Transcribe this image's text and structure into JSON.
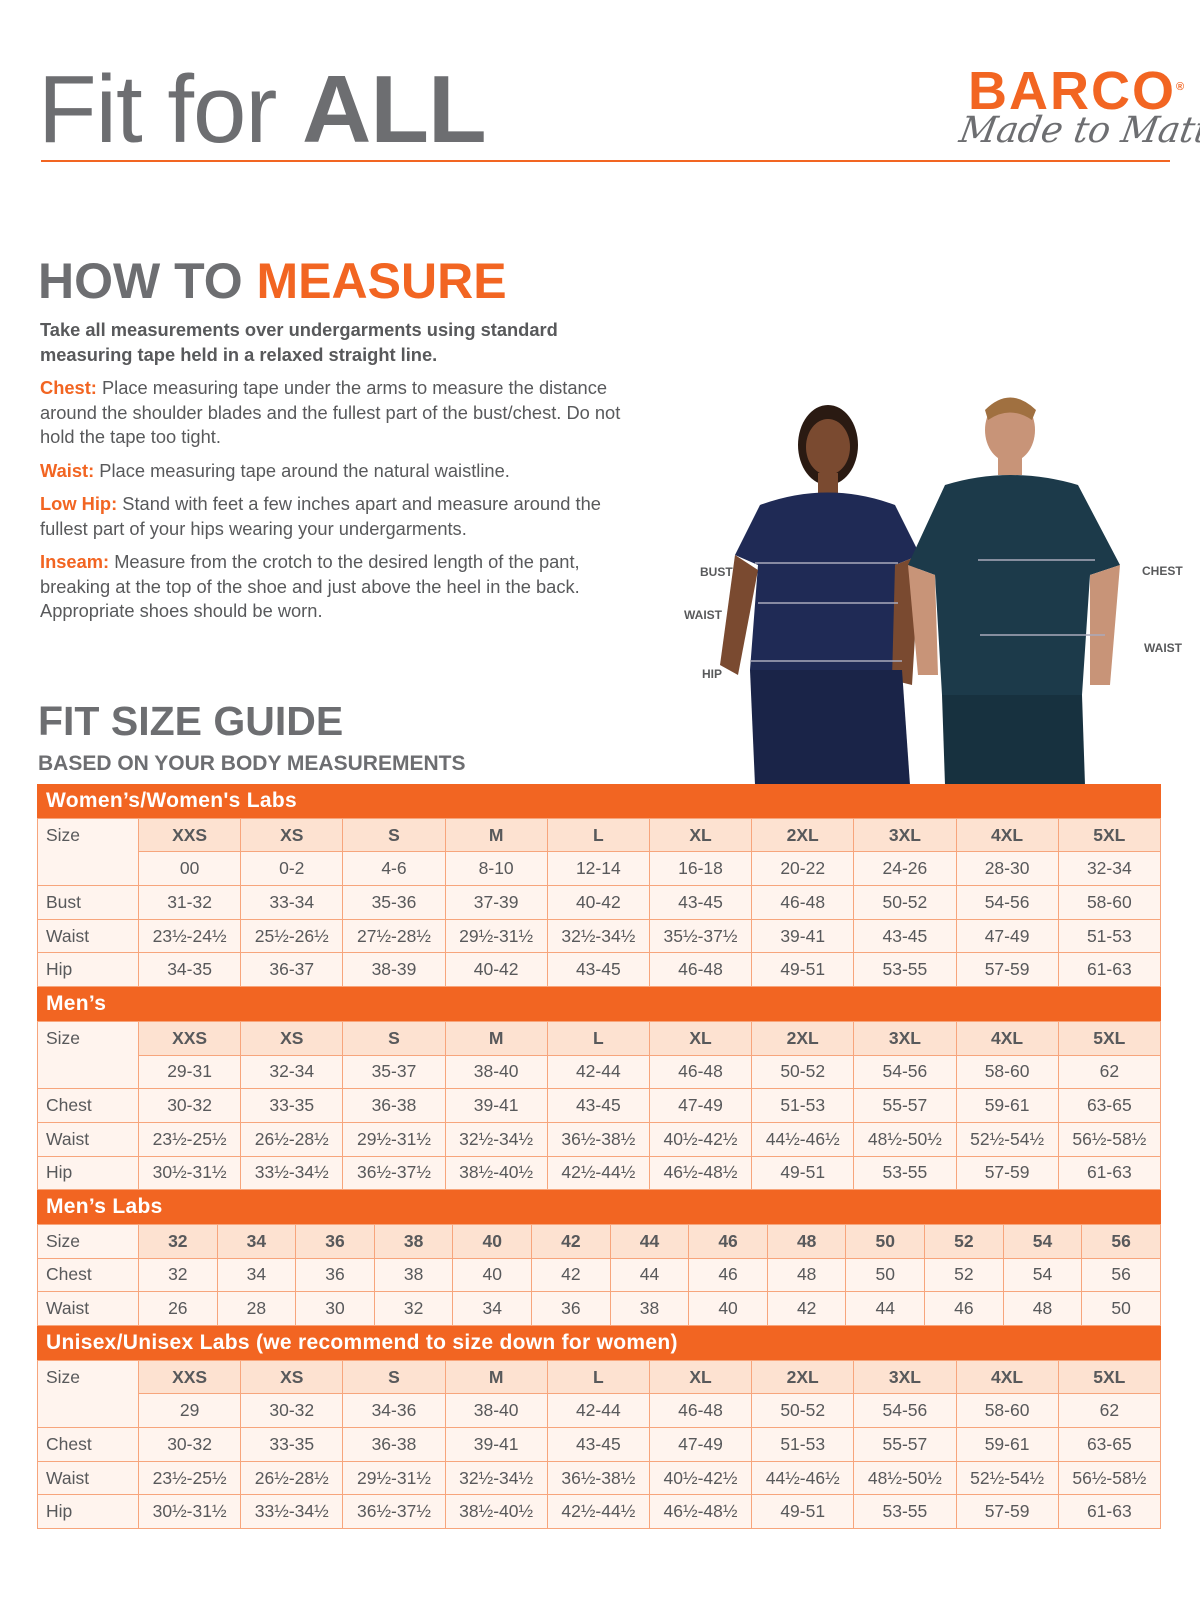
{
  "header": {
    "title_light": "Fit for ",
    "title_bold": "ALL",
    "brand": "BARCO",
    "brand_mark": "®",
    "tagline": "Made to Matter"
  },
  "measure": {
    "title_a": "HOW TO ",
    "title_b": "MEASURE",
    "intro": "Take all measurements over undergarments using standard measuring tape held in a relaxed straight line.",
    "items": [
      {
        "key": "Chest:",
        "text": "Place measuring tape under the arms to measure the distance around the shoulder blades and the fullest part of the bust/chest. Do not hold the tape too tight."
      },
      {
        "key": "Waist:",
        "text": "Place measuring tape around the natural waistline."
      },
      {
        "key": "Low Hip:",
        "text": "Stand with feet a few inches apart and measure around the fullest part of your hips wearing your undergarments."
      },
      {
        "key": "Inseam:",
        "text": "Measure from the crotch to the desired length of the pant, breaking at the top of the shoe and just above the heel in the back. Appropriate shoes should be worn."
      }
    ]
  },
  "figure_labels": {
    "bust": "BUST",
    "waist_w": "WAIST",
    "hip": "HIP",
    "chest": "CHEST",
    "waist_m": "WAIST"
  },
  "guide": {
    "title": "FIT SIZE GUIDE",
    "subtitle": "BASED ON YOUR BODY MEASUREMENTS"
  },
  "colors": {
    "accent": "#f26522",
    "text": "#6d6e71",
    "header_row": "#fde2d1",
    "cell": "#fff4ee"
  },
  "sections": [
    {
      "title": "Women’s/Women's Labs",
      "size_label": "Size",
      "sizes": [
        "XXS",
        "XS",
        "S",
        "M",
        "L",
        "XL",
        "2XL",
        "3XL",
        "4XL",
        "5XL"
      ],
      "sub": [
        "00",
        "0-2",
        "4-6",
        "8-10",
        "12-14",
        "16-18",
        "20-22",
        "24-26",
        "28-30",
        "32-34"
      ],
      "rows": [
        {
          "label": "Bust",
          "values": [
            "31-32",
            "33-34",
            "35-36",
            "37-39",
            "40-42",
            "43-45",
            "46-48",
            "50-52",
            "54-56",
            "58-60"
          ]
        },
        {
          "label": "Waist",
          "values": [
            "23½-24½",
            "25½-26½",
            "27½-28½",
            "29½-31½",
            "32½-34½",
            "35½-37½",
            "39-41",
            "43-45",
            "47-49",
            "51-53"
          ]
        },
        {
          "label": "Hip",
          "values": [
            "34-35",
            "36-37",
            "38-39",
            "40-42",
            "43-45",
            "46-48",
            "49-51",
            "53-55",
            "57-59",
            "61-63"
          ]
        }
      ]
    },
    {
      "title": "Men’s",
      "size_label": "Size",
      "sizes": [
        "XXS",
        "XS",
        "S",
        "M",
        "L",
        "XL",
        "2XL",
        "3XL",
        "4XL",
        "5XL"
      ],
      "sub": [
        "29-31",
        "32-34",
        "35-37",
        "38-40",
        "42-44",
        "46-48",
        "50-52",
        "54-56",
        "58-60",
        "62"
      ],
      "rows": [
        {
          "label": "Chest",
          "values": [
            "30-32",
            "33-35",
            "36-38",
            "39-41",
            "43-45",
            "47-49",
            "51-53",
            "55-57",
            "59-61",
            "63-65"
          ]
        },
        {
          "label": "Waist",
          "values": [
            "23½-25½",
            "26½-28½",
            "29½-31½",
            "32½-34½",
            "36½-38½",
            "40½-42½",
            "44½-46½",
            "48½-50½",
            "52½-54½",
            "56½-58½"
          ]
        },
        {
          "label": "Hip",
          "values": [
            "30½-31½",
            "33½-34½",
            "36½-37½",
            "38½-40½",
            "42½-44½",
            "46½-48½",
            "49-51",
            "53-55",
            "57-59",
            "61-63"
          ]
        }
      ]
    },
    {
      "title": "Men’s Labs",
      "size_label": "Size",
      "sizes": [
        "32",
        "34",
        "36",
        "38",
        "40",
        "42",
        "44",
        "46",
        "48",
        "50",
        "52",
        "54",
        "56"
      ],
      "rows": [
        {
          "label": "Chest",
          "values": [
            "32",
            "34",
            "36",
            "38",
            "40",
            "42",
            "44",
            "46",
            "48",
            "50",
            "52",
            "54",
            "56"
          ]
        },
        {
          "label": "Waist",
          "values": [
            "26",
            "28",
            "30",
            "32",
            "34",
            "36",
            "38",
            "40",
            "42",
            "44",
            "46",
            "48",
            "50"
          ]
        }
      ]
    },
    {
      "title": "Unisex/Unisex Labs (we recommend to size down for women)",
      "size_label": "Size",
      "sizes": [
        "XXS",
        "XS",
        "S",
        "M",
        "L",
        "XL",
        "2XL",
        "3XL",
        "4XL",
        "5XL"
      ],
      "sub": [
        "29",
        "30-32",
        "34-36",
        "38-40",
        "42-44",
        "46-48",
        "50-52",
        "54-56",
        "58-60",
        "62"
      ],
      "rows": [
        {
          "label": "Chest",
          "values": [
            "30-32",
            "33-35",
            "36-38",
            "39-41",
            "43-45",
            "47-49",
            "51-53",
            "55-57",
            "59-61",
            "63-65"
          ]
        },
        {
          "label": "Waist",
          "values": [
            "23½-25½",
            "26½-28½",
            "29½-31½",
            "32½-34½",
            "36½-38½",
            "40½-42½",
            "44½-46½",
            "48½-50½",
            "52½-54½",
            "56½-58½"
          ]
        },
        {
          "label": "Hip",
          "values": [
            "30½-31½",
            "33½-34½",
            "36½-37½",
            "38½-40½",
            "42½-44½",
            "46½-48½",
            "49-51",
            "53-55",
            "57-59",
            "61-63"
          ]
        }
      ]
    }
  ]
}
